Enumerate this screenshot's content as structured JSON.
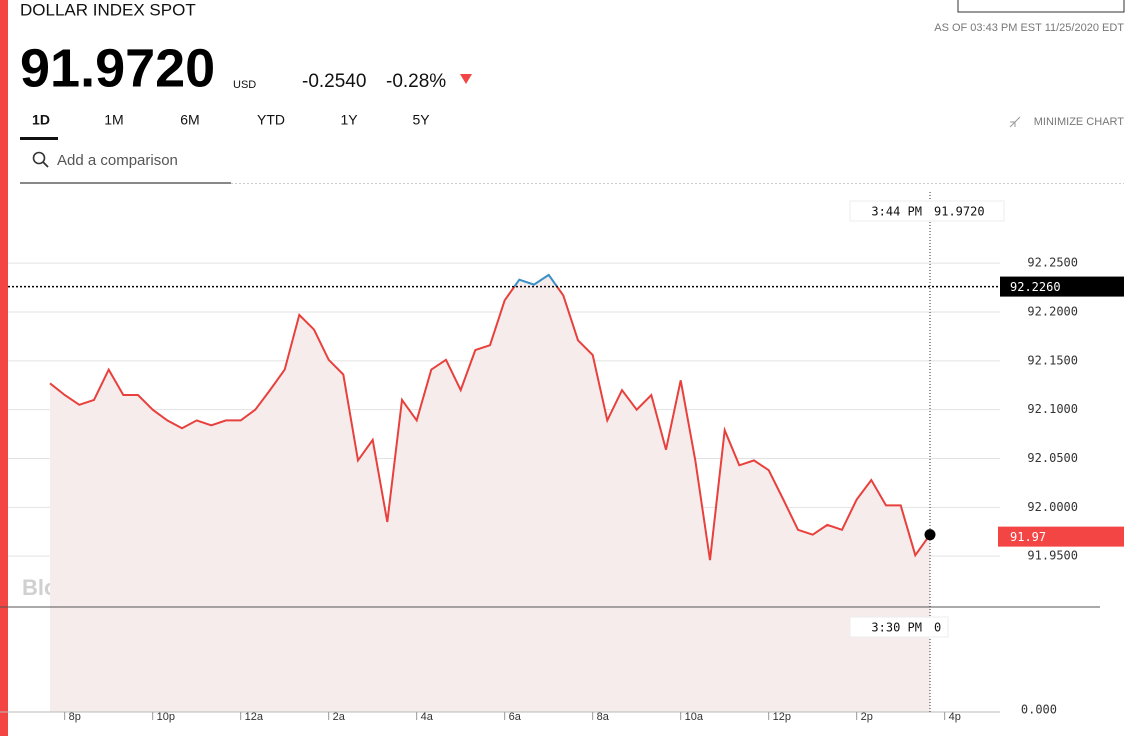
{
  "header": {
    "title": "DOLLAR INDEX SPOT",
    "as_of": "AS OF 03:43 PM EST 11/25/2020 EDT",
    "price": "91.9720",
    "currency": "USD",
    "change": "-0.2540",
    "change_pct": "-0.28%"
  },
  "tabs": [
    "1D",
    "1M",
    "6M",
    "YTD",
    "1Y",
    "5Y"
  ],
  "minimize": "MINIMIZE CHART",
  "search_placeholder": "Add a comparison",
  "watermark": "BloombergMarkets",
  "chart_data": {
    "type": "line",
    "categories": [
      null,
      "8p",
      null,
      null,
      null,
      null,
      null,
      "10p",
      null,
      null,
      null,
      null,
      null,
      "12a",
      null,
      null,
      null,
      null,
      null,
      "2a",
      null,
      null,
      null,
      null,
      null,
      "4a",
      null,
      null,
      null,
      null,
      null,
      "6a",
      null,
      null,
      null,
      null,
      null,
      "8a",
      null,
      null,
      null,
      null,
      null,
      "10a",
      null,
      null,
      null,
      null,
      null,
      "12p",
      null,
      null,
      null,
      null,
      null,
      "2p",
      null,
      null,
      null,
      null,
      null,
      "4p"
    ],
    "values": [
      92.127,
      92.115,
      92.105,
      92.11,
      92.141,
      92.115,
      92.115,
      92.1,
      92.089,
      92.081,
      92.089,
      92.084,
      92.089,
      92.089,
      92.1,
      92.12,
      92.141,
      92.197,
      92.182,
      92.151,
      92.136,
      92.048,
      92.069,
      91.985,
      92.11,
      92.089,
      92.141,
      92.151,
      92.12,
      92.161,
      92.166,
      92.212,
      92.233,
      92.228,
      92.238,
      92.217,
      92.171,
      92.156,
      92.089,
      92.12,
      92.1,
      92.115,
      92.059,
      92.13,
      92.048,
      91.946,
      92.079,
      92.043,
      92.048,
      92.038,
      92.008,
      91.977,
      91.972,
      91.982,
      91.977,
      92.008,
      92.028,
      92.002,
      92.002,
      91.951,
      91.972,
      null
    ],
    "color": "#e8403c",
    "above_color": "#3a8fc4",
    "fill": "#f6ecec",
    "ylim": [
      91.9,
      92.33
    ],
    "yticks": [
      {
        "value": 91.95,
        "label": "91.9500"
      },
      {
        "value": 92,
        "label": "92.0000"
      },
      {
        "value": 92.05,
        "label": "92.0500"
      },
      {
        "value": 92.1,
        "label": "92.1000"
      },
      {
        "value": 92.15,
        "label": "92.1500"
      },
      {
        "value": 92.2,
        "label": "92.2000"
      },
      {
        "value": 92.25,
        "label": "92.2500"
      }
    ],
    "grid": true,
    "axis_floor_label": "0.000",
    "reference_line": {
      "value": 92.226,
      "label": "92.2260"
    },
    "last_value": 91.97,
    "crosshair_top": {
      "time": "3:44 PM",
      "value": "91.9720"
    },
    "crosshair_bottom": {
      "time": "3:30 PM",
      "value": "0"
    }
  }
}
